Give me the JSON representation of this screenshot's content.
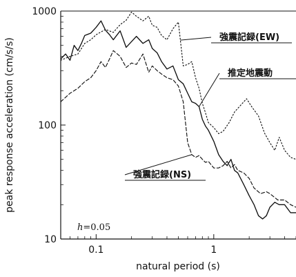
{
  "chart_data": {
    "type": "line",
    "xlabel": "natural period (s)",
    "ylabel": "peak response acceleration (cm/s/s)",
    "xscale": "log",
    "yscale": "log",
    "xlim": [
      0.05,
      5
    ],
    "ylim": [
      10,
      1000
    ],
    "grid": false,
    "legend": "none",
    "x_ticks": [
      {
        "value": 0.1,
        "label": "0.1"
      },
      {
        "value": 1,
        "label": "1"
      }
    ],
    "y_ticks": [
      {
        "value": 10,
        "label": "10"
      },
      {
        "value": 100,
        "label": "100"
      },
      {
        "value": 1000,
        "label": "1000"
      }
    ],
    "damping_note": {
      "prefix": "h",
      "suffix": "=0.05"
    },
    "series": [
      {
        "key": "ew",
        "name": "強震記録(EW)",
        "style": "dotted",
        "color": "#111111",
        "points": [
          [
            0.05,
            370
          ],
          [
            0.06,
            400
          ],
          [
            0.07,
            420
          ],
          [
            0.08,
            520
          ],
          [
            0.09,
            560
          ],
          [
            0.1,
            620
          ],
          [
            0.12,
            690
          ],
          [
            0.14,
            650
          ],
          [
            0.16,
            760
          ],
          [
            0.18,
            830
          ],
          [
            0.2,
            980
          ],
          [
            0.22,
            900
          ],
          [
            0.25,
            820
          ],
          [
            0.28,
            900
          ],
          [
            0.3,
            750
          ],
          [
            0.33,
            720
          ],
          [
            0.36,
            610
          ],
          [
            0.4,
            560
          ],
          [
            0.45,
            700
          ],
          [
            0.5,
            800
          ],
          [
            0.55,
            330
          ],
          [
            0.6,
            340
          ],
          [
            0.65,
            360
          ],
          [
            0.7,
            260
          ],
          [
            0.75,
            210
          ],
          [
            0.8,
            155
          ],
          [
            0.85,
            128
          ],
          [
            0.9,
            105
          ],
          [
            1.0,
            95
          ],
          [
            1.1,
            84
          ],
          [
            1.2,
            88
          ],
          [
            1.35,
            105
          ],
          [
            1.5,
            130
          ],
          [
            1.7,
            150
          ],
          [
            1.9,
            170
          ],
          [
            2.1,
            145
          ],
          [
            2.4,
            120
          ],
          [
            2.7,
            85
          ],
          [
            3.0,
            70
          ],
          [
            3.3,
            60
          ],
          [
            3.6,
            78
          ],
          [
            4.0,
            60
          ],
          [
            4.5,
            52
          ],
          [
            5.0,
            50
          ]
        ]
      },
      {
        "key": "estimated",
        "name": "推定地震動",
        "style": "solid",
        "color": "#111111",
        "points": [
          [
            0.05,
            380
          ],
          [
            0.055,
            420
          ],
          [
            0.06,
            370
          ],
          [
            0.065,
            500
          ],
          [
            0.07,
            450
          ],
          [
            0.075,
            520
          ],
          [
            0.08,
            610
          ],
          [
            0.09,
            640
          ],
          [
            0.1,
            720
          ],
          [
            0.11,
            820
          ],
          [
            0.12,
            680
          ],
          [
            0.13,
            620
          ],
          [
            0.14,
            560
          ],
          [
            0.16,
            670
          ],
          [
            0.18,
            480
          ],
          [
            0.2,
            540
          ],
          [
            0.22,
            600
          ],
          [
            0.25,
            520
          ],
          [
            0.28,
            560
          ],
          [
            0.3,
            470
          ],
          [
            0.33,
            430
          ],
          [
            0.36,
            360
          ],
          [
            0.4,
            310
          ],
          [
            0.45,
            330
          ],
          [
            0.5,
            250
          ],
          [
            0.55,
            230
          ],
          [
            0.6,
            190
          ],
          [
            0.65,
            160
          ],
          [
            0.7,
            155
          ],
          [
            0.75,
            145
          ],
          [
            0.8,
            112
          ],
          [
            0.85,
            98
          ],
          [
            0.9,
            90
          ],
          [
            1.0,
            72
          ],
          [
            1.1,
            55
          ],
          [
            1.2,
            48
          ],
          [
            1.3,
            44
          ],
          [
            1.4,
            50
          ],
          [
            1.5,
            40
          ],
          [
            1.6,
            38
          ],
          [
            1.8,
            30
          ],
          [
            2.0,
            24
          ],
          [
            2.2,
            20
          ],
          [
            2.4,
            16
          ],
          [
            2.6,
            15
          ],
          [
            2.8,
            16
          ],
          [
            3.0,
            19
          ],
          [
            3.3,
            21
          ],
          [
            3.6,
            20
          ],
          [
            4.0,
            20
          ],
          [
            4.5,
            17
          ],
          [
            5.0,
            17
          ]
        ]
      },
      {
        "key": "ns",
        "name": "強震記録(NS)",
        "style": "dashed",
        "color": "#111111",
        "points": [
          [
            0.05,
            160
          ],
          [
            0.06,
            190
          ],
          [
            0.07,
            210
          ],
          [
            0.08,
            240
          ],
          [
            0.09,
            260
          ],
          [
            0.1,
            300
          ],
          [
            0.11,
            360
          ],
          [
            0.12,
            320
          ],
          [
            0.13,
            380
          ],
          [
            0.14,
            450
          ],
          [
            0.16,
            400
          ],
          [
            0.18,
            320
          ],
          [
            0.2,
            350
          ],
          [
            0.22,
            340
          ],
          [
            0.25,
            420
          ],
          [
            0.28,
            290
          ],
          [
            0.3,
            330
          ],
          [
            0.33,
            300
          ],
          [
            0.36,
            280
          ],
          [
            0.4,
            260
          ],
          [
            0.45,
            250
          ],
          [
            0.5,
            220
          ],
          [
            0.55,
            160
          ],
          [
            0.6,
            70
          ],
          [
            0.65,
            55
          ],
          [
            0.7,
            52
          ],
          [
            0.75,
            54
          ],
          [
            0.8,
            50
          ],
          [
            0.85,
            47
          ],
          [
            0.9,
            48
          ],
          [
            1.0,
            42
          ],
          [
            1.1,
            42
          ],
          [
            1.2,
            44
          ],
          [
            1.3,
            48
          ],
          [
            1.4,
            42
          ],
          [
            1.5,
            45
          ],
          [
            1.6,
            40
          ],
          [
            1.8,
            38
          ],
          [
            2.0,
            34
          ],
          [
            2.2,
            28
          ],
          [
            2.5,
            25
          ],
          [
            2.8,
            26
          ],
          [
            3.0,
            25
          ],
          [
            3.5,
            22
          ],
          [
            4.0,
            22
          ],
          [
            4.5,
            20
          ],
          [
            5.0,
            19
          ]
        ]
      }
    ],
    "annotations": [
      {
        "series": "ew",
        "text": "強震記録(EW)"
      },
      {
        "series": "estimated",
        "text": "推定地震動"
      },
      {
        "series": "ns",
        "text": "強震記録(NS)"
      }
    ]
  }
}
